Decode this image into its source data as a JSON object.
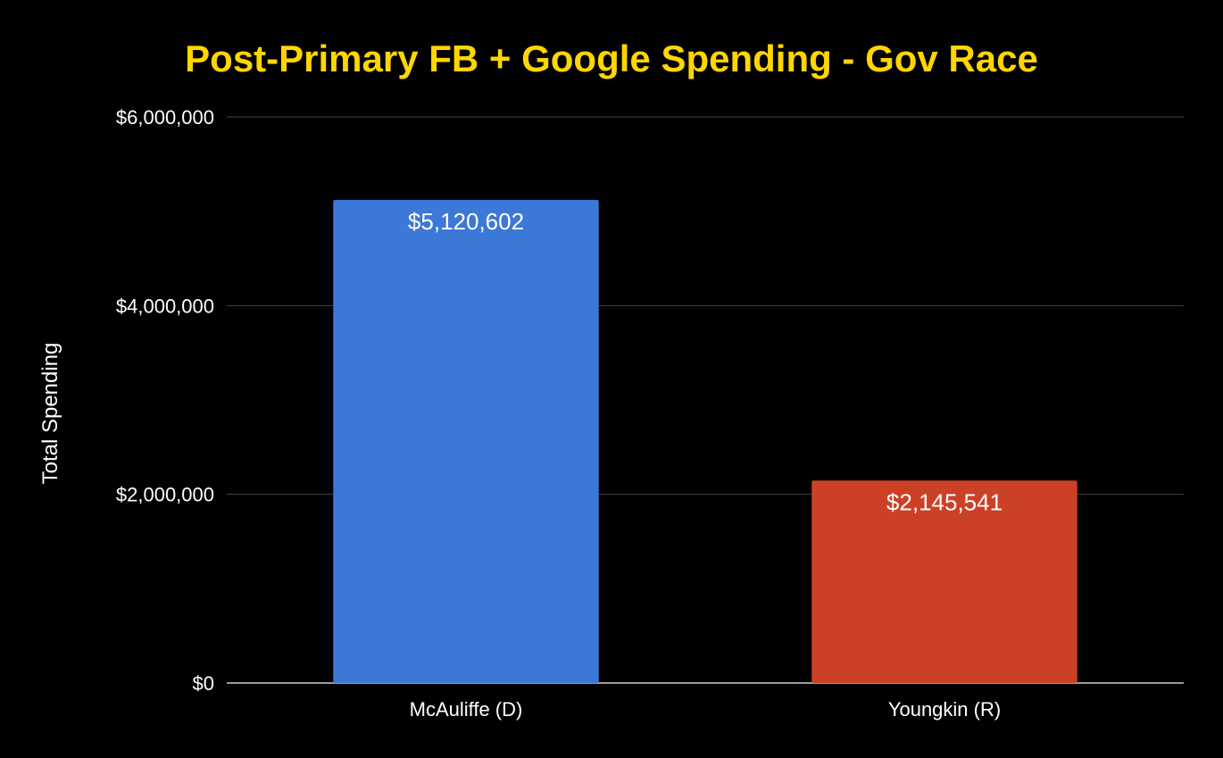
{
  "colors": {
    "background": "#000000",
    "title": "#ffd600",
    "text": "#ffffff",
    "gridline": "#444444",
    "baseline": "#cccccc"
  },
  "chart_data": {
    "type": "bar",
    "title": "Post-Primary FB + Google Spending - Gov Race",
    "xlabel": "",
    "ylabel": "Total Spending",
    "categories": [
      "McAuliffe (D)",
      "Youngkin (R)"
    ],
    "values": [
      5120602,
      2145541
    ],
    "value_labels": [
      "$5,120,602",
      "$2,145,541"
    ],
    "bar_colors": [
      "#3c78d8",
      "#cc4125"
    ],
    "ylim": [
      0,
      6000000
    ],
    "yticks": [
      0,
      2000000,
      4000000,
      6000000
    ],
    "ytick_labels": [
      "$0",
      "$2,000,000",
      "$4,000,000",
      "$6,000,000"
    ],
    "grid": true,
    "legend": "none"
  }
}
